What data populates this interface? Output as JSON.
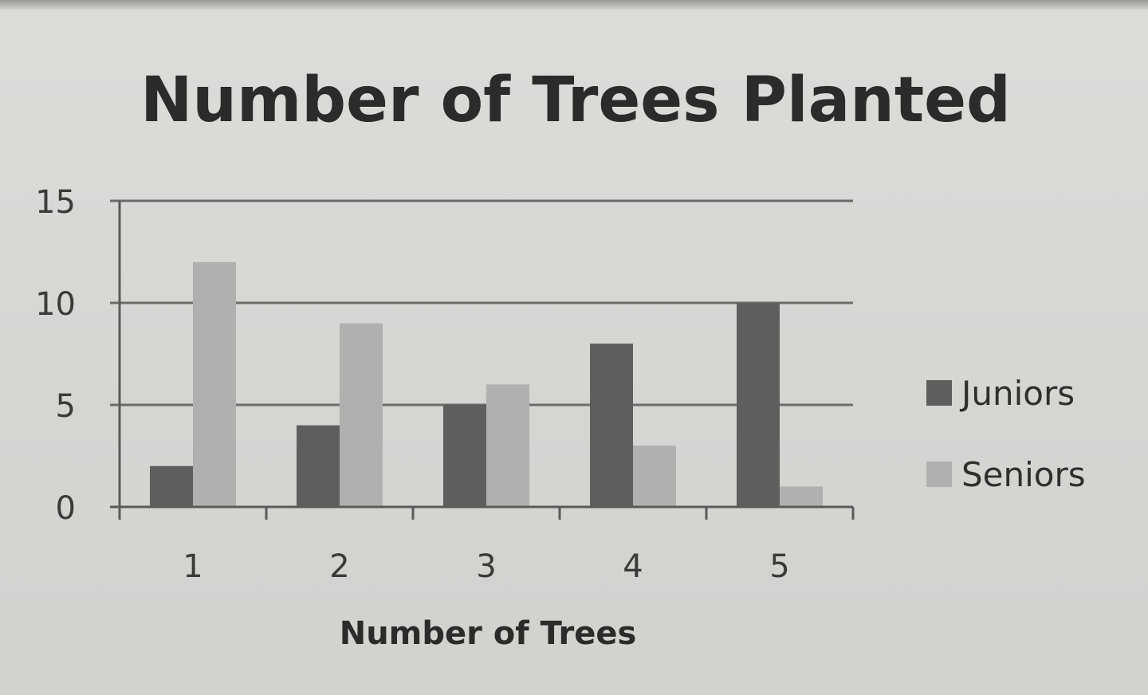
{
  "chart_data": {
    "type": "bar",
    "title": "Number of Trees Planted",
    "xlabel": "Number of Trees",
    "ylabel": "",
    "categories": [
      "1",
      "2",
      "3",
      "4",
      "5"
    ],
    "series": [
      {
        "name": "Juniors",
        "values": [
          2,
          4,
          5,
          8,
          10
        ],
        "color": "#5e5e5e"
      },
      {
        "name": "Seniors",
        "values": [
          12,
          9,
          6,
          3,
          1
        ],
        "color": "#b0b0ae"
      }
    ],
    "ylim": [
      0,
      15
    ],
    "yticks": [
      "0",
      "5",
      "10",
      "15"
    ],
    "ytick_values": [
      0,
      5,
      10,
      15
    ],
    "grid": true,
    "legend_position": "right"
  }
}
